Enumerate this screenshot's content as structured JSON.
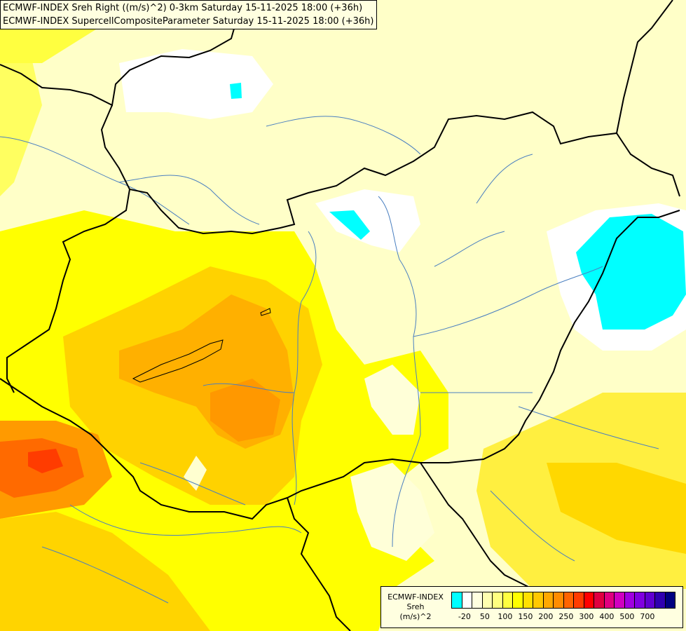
{
  "title": {
    "line1": "ECMWF-INDEX Sreh Right ((m/s)^2) 0-3km Saturday 15-11-2025 18:00 (+36h)",
    "line2": "ECMWF-INDEX SupercellCompositeParameter Saturday 15-11-2025 18:00 (+36h)"
  },
  "legend": {
    "line1": "ECMWF-INDEX",
    "line2": "Sreh",
    "line3": "(m/s)^2",
    "swatch_colors": [
      "#00ffff",
      "#ffffff",
      "#ffffe0",
      "#ffffb0",
      "#ffff80",
      "#ffff40",
      "#ffff00",
      "#ffe000",
      "#ffc800",
      "#ffa800",
      "#ff8c00",
      "#ff6400",
      "#ff3c00",
      "#ff0000",
      "#e00040",
      "#e00080",
      "#d000c0",
      "#a000e0",
      "#8000e0",
      "#6000d0",
      "#3000b0",
      "#000080"
    ],
    "tick_labels": [
      "-20",
      "50",
      "100",
      "150",
      "200",
      "250",
      "300",
      "400",
      "500",
      "700"
    ]
  },
  "colors": {
    "background": "#ffffc0",
    "border_line": "#000000",
    "river_line": "#4a7fc0"
  }
}
